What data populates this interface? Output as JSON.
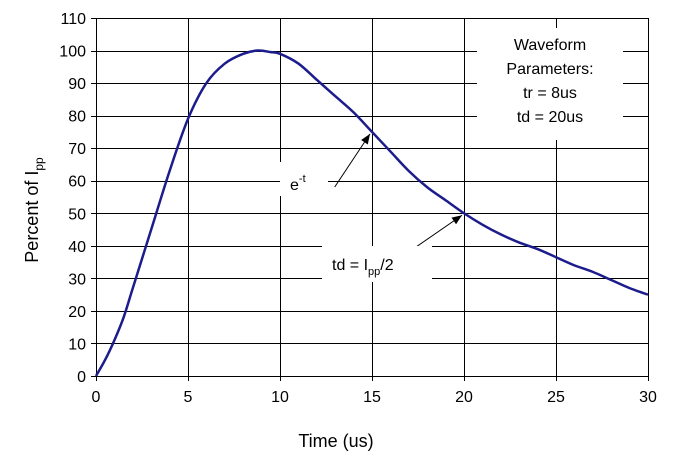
{
  "chart_data": {
    "type": "line",
    "xlabel": "Time (us)",
    "ylabel": "Percent of I",
    "ylabel_subscript": "pp",
    "xlim": [
      0,
      30
    ],
    "ylim": [
      0,
      110
    ],
    "x_ticks": [
      0,
      5,
      10,
      15,
      20,
      25,
      30
    ],
    "y_ticks": [
      0,
      10,
      20,
      30,
      40,
      50,
      60,
      70,
      80,
      90,
      100,
      110
    ],
    "grid": true,
    "series_color": "#1c1c8c",
    "series": [
      {
        "x": [
          0,
          0.5,
          1,
          1.5,
          2,
          3,
          4,
          5,
          6,
          7,
          8,
          8.8,
          9.5,
          10,
          11,
          12,
          13,
          14,
          15,
          16,
          17,
          18,
          19,
          20,
          21,
          22,
          23,
          24,
          25,
          26,
          27,
          28,
          29,
          30
        ],
        "y": [
          0,
          5,
          11,
          18,
          27,
          45,
          63,
          79,
          90,
          96,
          99,
          100,
          99.5,
          99,
          96,
          91,
          86,
          81,
          75,
          69,
          63,
          58,
          54,
          50,
          46.5,
          43.5,
          41,
          39,
          36.5,
          34,
          32,
          29.5,
          27,
          25
        ]
      }
    ],
    "parameters_box": {
      "lines": [
        "Waveform",
        "Parameters:",
        "tr = 8us",
        "td = 20us"
      ]
    },
    "annotations": [
      {
        "base": "e",
        "superscript": "-t",
        "label_at": [
          10.8,
          59
        ],
        "arrow_to": [
          15,
          75
        ]
      },
      {
        "base": "td = I",
        "subscript": "pp",
        "suffix": "/2",
        "label_at": [
          11.8,
          34
        ],
        "arrow_to": [
          20,
          50
        ]
      }
    ]
  }
}
